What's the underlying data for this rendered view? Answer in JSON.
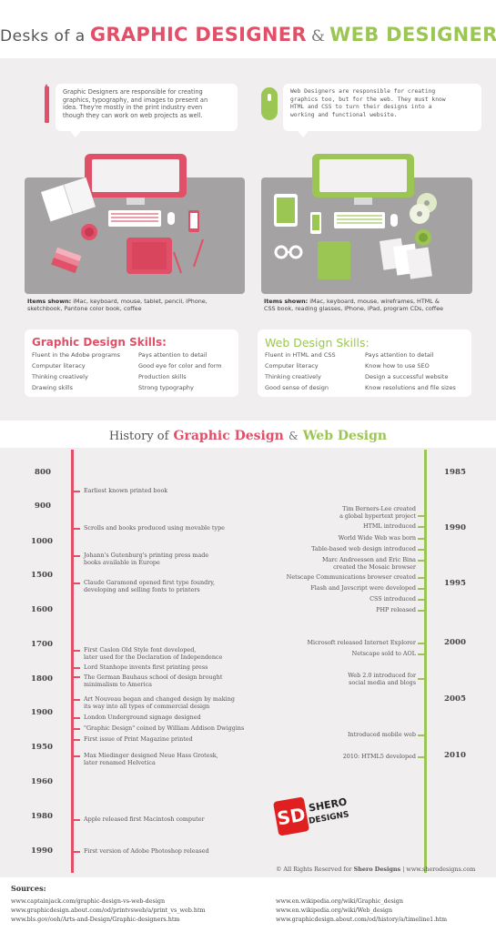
{
  "header": {
    "title_part1": "Desks of a",
    "title_part2": "GRAPHIC DESIGNER",
    "title_amp": "&",
    "title_part3": "WEB DESIGNER"
  },
  "graphic": {
    "bubble_lines": [
      "Graphic Designers are responsible for creating",
      "graphics, typography, and images to present an",
      "idea. They're mostly in the print industry even",
      "though they can work on web projects as well."
    ],
    "items_label": "Items shown:",
    "items_lines": [
      " iMac, keyboard, mouse, tablet, pencil, iPhone,",
      "sketchbook, Pantone color book, coffee"
    ],
    "skills_title": "Graphic Design Skills:",
    "skills_col1": [
      "Fluent in the Adobe programs",
      "Computer literacy",
      "Thinking creatively",
      "Drawing skills"
    ],
    "skills_col2": [
      "Pays attention to detail",
      "Good eye for color and form",
      "Production skills",
      "Strong typography"
    ]
  },
  "web": {
    "bubble_lines": [
      "Web Designers are responsible for creating",
      "graphics too, but for the web. They must know",
      "HTML and CSS to turn their designs into a",
      "working and functional website."
    ],
    "items_label": "Items shown:",
    "items_lines": [
      " iMac, keyboard, mouse, wireframes, HTML &",
      "CSS book, reading glasses, iPhone, iPad, program CDs, coffee"
    ],
    "skills_title": "Web Design Skills:",
    "skills_col1": [
      "Fluent in HTML and CSS",
      "Computer literacy",
      "Thinking creatively",
      "Good sense of design"
    ],
    "skills_col2": [
      "Pays attention to detail",
      "Know how to use SEO",
      "Design a successful website",
      "Know resolutions and file sizes"
    ]
  },
  "history": {
    "title_part1": "History of",
    "title_part2": "Graphic Design",
    "title_amp": "&",
    "title_part3": "Web Design",
    "left_years": [
      "800",
      "900",
      "1000",
      "1500",
      "1600",
      "1700",
      "1800",
      "1900",
      "1950",
      "1960",
      "1980",
      "1990"
    ],
    "right_years": [
      "1985",
      "1990",
      "1995",
      "2000",
      "2005",
      "2010"
    ],
    "left_events": [
      [
        "Earliest known printed book"
      ],
      [
        "Scrolls and books produced using movable type"
      ],
      [
        "Johann's Gutenburg's printing press made",
        "books available in Europe"
      ],
      [
        "Claude Garamond opened first type foundry,",
        "developing and selling fonts to printers"
      ],
      [
        "First Caslon Old Style font developed,",
        "later used for the Declaration of Independence"
      ],
      [
        "Lord Stanhope invents first printing press"
      ],
      [
        "The German Bauhaus school of design brought",
        "minimalism to America"
      ],
      [
        "Art Nouveau began and changed design by making",
        "its way into all types of commercial design"
      ],
      [
        "London Underground  signage designed"
      ],
      [
        "\"Graphic Design\" coined by William Addison Dwiggins"
      ],
      [
        "First issue of Print Magazine printed"
      ],
      [
        "Max Miedinger designed Neue Hass Grotesk,",
        "later renamed Helvetica"
      ],
      [
        "Apple released first Macintosh computer"
      ],
      [
        "First version of Adobe Photoshop released"
      ]
    ],
    "right_events": [
      [
        "Tim Berners-Lee created",
        "a global hypertext project"
      ],
      [
        "HTML introduced"
      ],
      [
        "World Wide Web was born"
      ],
      [
        "Table-based web design introduced"
      ],
      [
        "Marc Andreessen and Eric Bina",
        "created the Mosaic browser"
      ],
      [
        "Netscape Communications browser created"
      ],
      [
        "Flash and Javscript were developed"
      ],
      [
        "CSS introduced"
      ],
      [
        "PHP released"
      ],
      [
        "Microsoft released Internet Explorer"
      ],
      [
        "Netscape sold to AOL"
      ],
      [
        "Web 2.0 introduced for",
        "social media and blogs"
      ],
      [
        "Introduced mobile web"
      ],
      [
        "2010: HTML5 developed"
      ]
    ]
  },
  "logo": {
    "mark": "SD",
    "line1": "SHERO",
    "line2": "DESIGNS"
  },
  "copyright": {
    "prefix": "© All Rights Reserved for ",
    "brand": "Shero Designs",
    "suffix": " | www.sherodesigns.com"
  },
  "sources": {
    "title": "Sources:",
    "left": [
      "www.captainjack.com/graphic-design-vs-web-design",
      "www.graphicdesign.about.com/od/printvsweb/a/print_vs_web.htm",
      "www.bls.gov/ooh/Arts-and-Design/Graphic-designers.htm"
    ],
    "right": [
      "www.en.wikipedia.org/wiki/Graphic_design",
      "www.en.wikipedia.org/wiki/Web_design",
      "www.graphicdesign.about.com/od/history/a/timeline1.htm"
    ]
  },
  "colors": {
    "pink": "#e05068",
    "green": "#9cc653",
    "desk_gray": "#a4a2a2",
    "background": "#f0eeee"
  }
}
